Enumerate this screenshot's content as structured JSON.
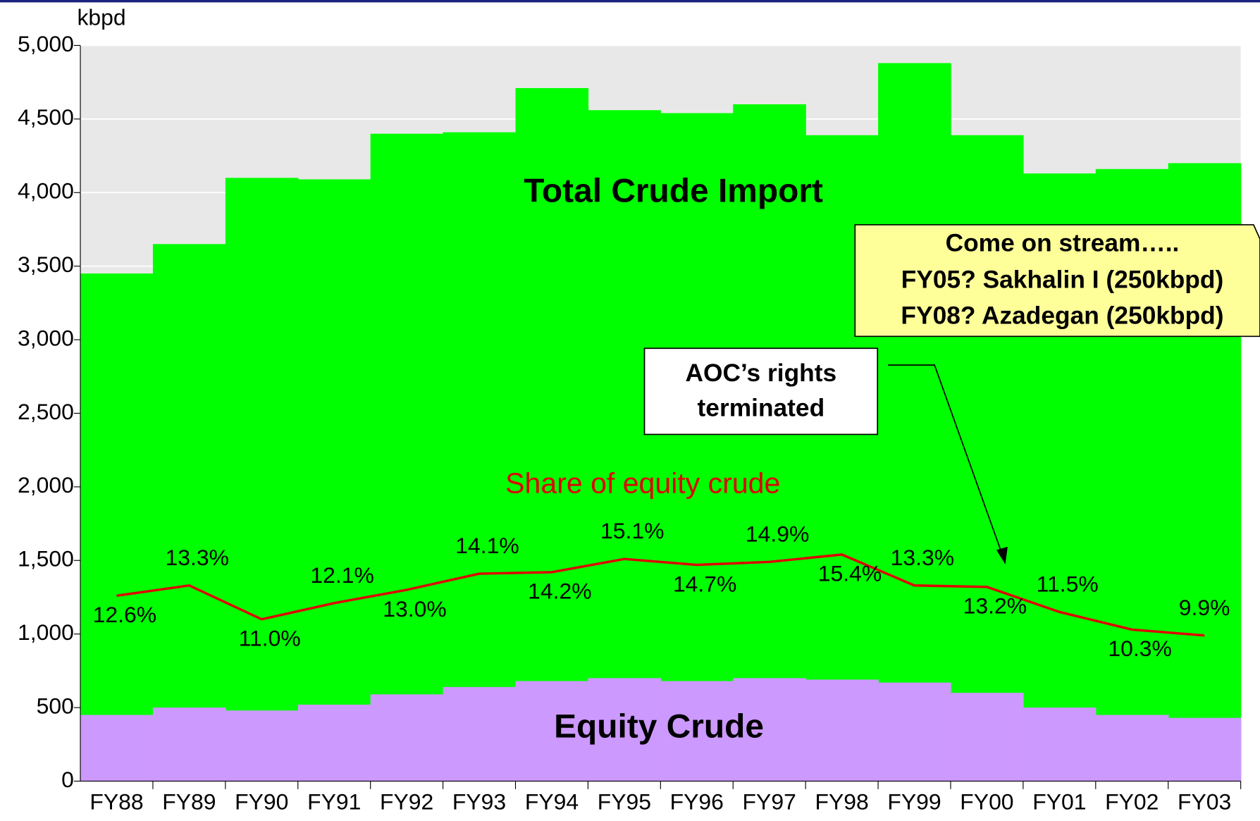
{
  "chart_data": {
    "type": "area-step",
    "y_label": "kbpd",
    "categories": [
      "FY88",
      "FY89",
      "FY90",
      "FY91",
      "FY92",
      "FY93",
      "FY94",
      "FY95",
      "FY96",
      "FY97",
      "FY98",
      "FY99",
      "FY00",
      "FY01",
      "FY02",
      "FY03"
    ],
    "series": [
      {
        "name": "Total Crude Import",
        "color": "#00ff00",
        "values": [
          3450,
          3650,
          4100,
          4090,
          4400,
          4410,
          4710,
          4560,
          4540,
          4600,
          4390,
          4880,
          4390,
          4130,
          4160,
          4200
        ]
      },
      {
        "name": "Equity Crude",
        "color": "#cc99ff",
        "values": [
          450,
          500,
          480,
          520,
          590,
          640,
          680,
          700,
          680,
          700,
          690,
          670,
          600,
          500,
          450,
          430
        ]
      },
      {
        "name": "Share of equity crude",
        "color": "#e00000",
        "axis": "y2",
        "values": [
          12.6,
          13.3,
          11.0,
          12.1,
          13.0,
          14.1,
          14.2,
          15.1,
          14.7,
          14.9,
          15.4,
          13.3,
          13.2,
          11.5,
          10.3,
          9.9
        ],
        "value_labels": [
          "12.6%",
          "13.3%",
          "11.0%",
          "12.1%",
          "13.0%",
          "14.1%",
          "14.2%",
          "15.1%",
          "14.7%",
          "14.9%",
          "15.4%",
          "13.3%",
          "13.2%",
          "11.5%",
          "10.3%",
          "9.9%"
        ]
      }
    ],
    "ylim": [
      0,
      5000
    ],
    "yticks": [
      0,
      500,
      {
        "value": 1000,
        "label": "1,000"
      },
      {
        "value": 1500,
        "label": "1,500"
      },
      {
        "value": 2000,
        "label": "2,000"
      },
      {
        "value": 2500,
        "label": "2,500"
      },
      {
        "value": 3000,
        "label": "3,000"
      },
      {
        "value": 3500,
        "label": "3,500"
      },
      {
        "value": 4000,
        "label": "4,000"
      },
      {
        "value": 4500,
        "label": "4,500"
      },
      {
        "value": 5000,
        "label": "5,000"
      }
    ],
    "y2lim": [
      0,
      50
    ],
    "grid": true,
    "annotations": {
      "callout": [
        "Come on stream…..",
        "FY05? Sakhalin I (250kbpd)",
        "FY08? Azadegan (250kbpd)"
      ],
      "aoc": [
        "AOC’s rights",
        "terminated"
      ]
    }
  }
}
